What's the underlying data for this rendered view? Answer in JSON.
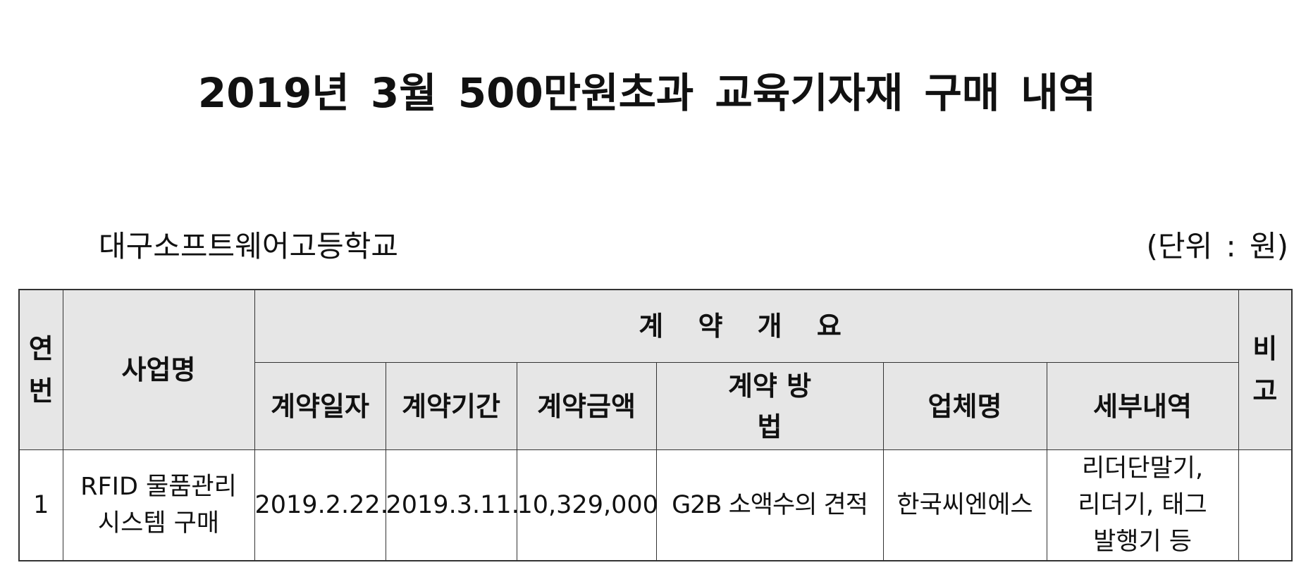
{
  "title": "2019년 3월 500만원초과 교육기자재 구매 내역",
  "school": "대구소프트웨어고등학교",
  "unit": "(단위 : 원)",
  "table": {
    "headers": {
      "number": "연번",
      "project_name": "사업명",
      "contract_overview": "계 약 개 요",
      "contract_date": "계약일자",
      "contract_period": "계약기간",
      "contract_amount": "계약금액",
      "contract_method": "계약 방법",
      "vendor": "업체명",
      "details": "세부내역",
      "remarks": "비고"
    },
    "rows": [
      {
        "number": "1",
        "project_name": "RFID 물품관리시스템 구매",
        "contract_date": "2019.2.22.",
        "contract_period": "2019.3.11.",
        "contract_amount": "10,329,000",
        "contract_method": "G2B 소액수의 견적",
        "vendor": "한국씨엔에스",
        "details": "리더단말기, 리더기, 태그발행기 등",
        "remarks": ""
      }
    ]
  }
}
